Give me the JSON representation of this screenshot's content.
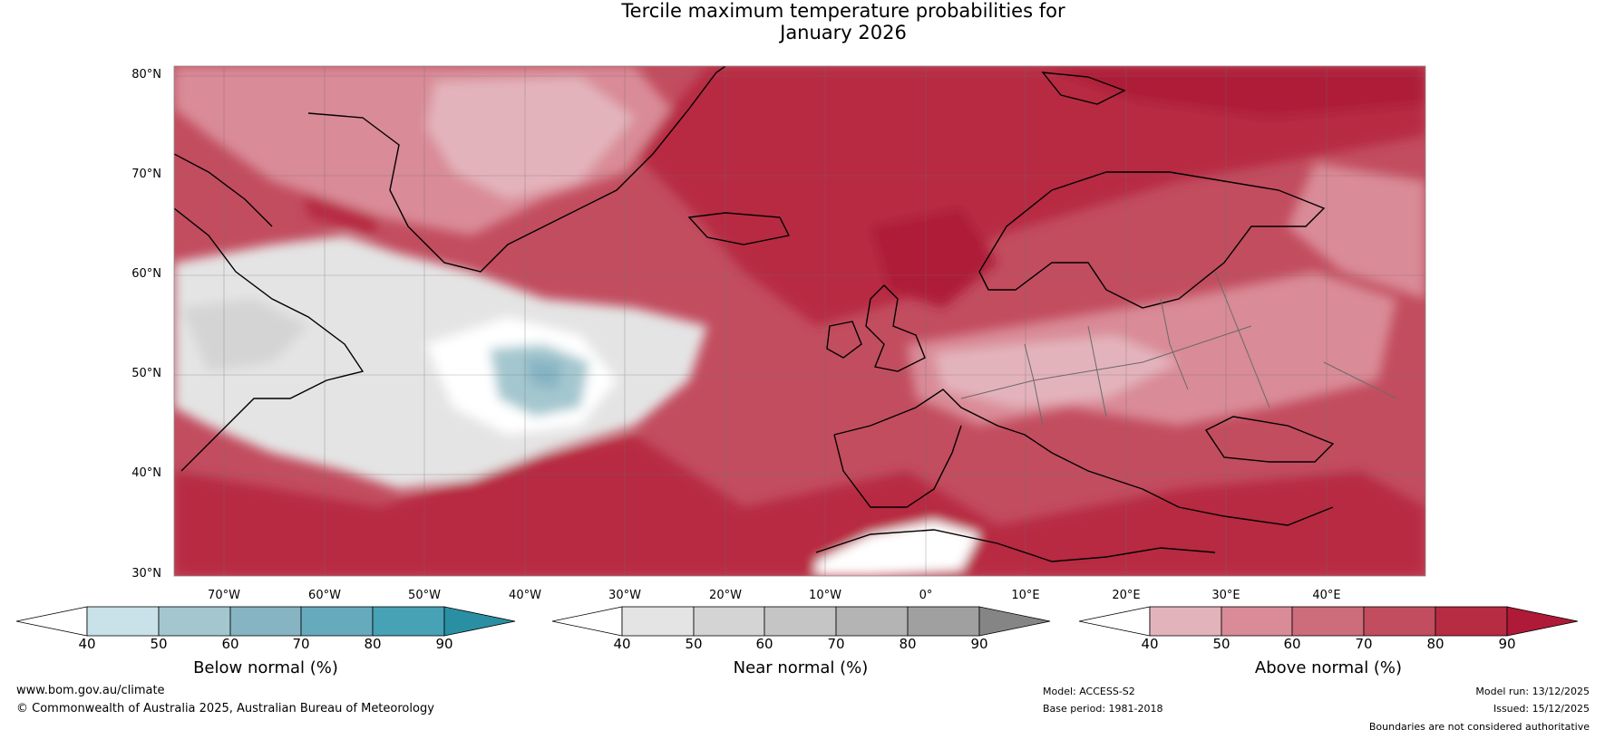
{
  "title": {
    "line1": "Tercile maximum temperature probabilities for",
    "line2": "January 2026"
  },
  "map": {
    "lat_labels": [
      "80°N",
      "70°N",
      "60°N",
      "50°N",
      "40°N",
      "30°N"
    ],
    "lon_labels": [
      "70°W",
      "60°W",
      "50°W",
      "40°W",
      "30°W",
      "20°W",
      "10°W",
      "0°",
      "10°E",
      "20°E",
      "30°E",
      "40°E"
    ]
  },
  "colorbars": [
    {
      "name": "below",
      "label": "Below normal (%)",
      "ticks": [
        "40",
        "50",
        "60",
        "70",
        "80",
        "90"
      ],
      "colors": [
        "#ffffff",
        "#c9e2e9",
        "#a4c7cf",
        "#86b4c3",
        "#66aabd",
        "#47a2b5",
        "#2a8fa3"
      ]
    },
    {
      "name": "near",
      "label": "Near normal (%)",
      "ticks": [
        "40",
        "50",
        "60",
        "70",
        "80",
        "90"
      ],
      "colors": [
        "#ffffff",
        "#e4e4e4",
        "#d4d4d4",
        "#c5c5c5",
        "#b4b4b4",
        "#a0a0a0",
        "#858585"
      ]
    },
    {
      "name": "above",
      "label": "Above normal (%)",
      "ticks": [
        "40",
        "50",
        "60",
        "70",
        "80",
        "90"
      ],
      "colors": [
        "#ffffff",
        "#e3b3bb",
        "#d98b97",
        "#cd6c7a",
        "#c24d5f",
        "#b72c43",
        "#ae1a37"
      ]
    }
  ],
  "footer": {
    "website": "www.bom.gov.au/climate",
    "copyright": "© Commonwealth of Australia 2025, Australian Bureau of Meteorology",
    "model": "Model: ACCESS-S2",
    "base_period": "Base period: 1981-2018",
    "model_run": "Model run: 13/12/2025",
    "issued": "Issued: 15/12/2025",
    "disclaimer": "Boundaries are not considered authoritative"
  }
}
